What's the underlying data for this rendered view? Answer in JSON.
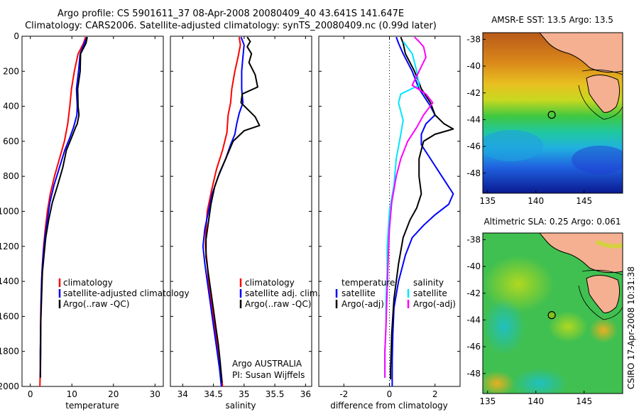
{
  "titles": {
    "line1": "Argo profile: CS 5901611_37 08-Apr-2008 20080409_40 43.641S 141.647E",
    "line2": "Climatology: CARS2006. Satellite-adjusted climatology: synTS_20080409.nc (0.99d later)"
  },
  "colors": {
    "climatology": "#ff0000",
    "satellite": "#0000ff",
    "argo": "#000000",
    "sat_salinity": "#00e5ff",
    "argo_salinity_adj": "#ff00ff"
  },
  "chart_data": [
    {
      "type": "line",
      "panel": "temperature",
      "xlabel": "temperature",
      "xlim": [
        -2,
        32
      ],
      "xticks": [
        0,
        10,
        20,
        30
      ],
      "ylim": [
        2000,
        0
      ],
      "yticks": [
        0,
        200,
        400,
        600,
        800,
        1000,
        1200,
        1400,
        1600,
        1800,
        2000
      ],
      "legend": [
        "climatology",
        "satellite-adjusted climatology",
        "Argo(..raw -QC)"
      ],
      "series": [
        {
          "name": "climatology",
          "color": "#ff0000",
          "points": [
            [
              13.3,
              5
            ],
            [
              12.8,
              40
            ],
            [
              11.5,
              100
            ],
            [
              10.6,
              200
            ],
            [
              9.9,
              300
            ],
            [
              9.5,
              400
            ],
            [
              9.0,
              500
            ],
            [
              8.2,
              600
            ],
            [
              7.0,
              700
            ],
            [
              5.8,
              800
            ],
            [
              4.8,
              900
            ],
            [
              4.1,
              1000
            ],
            [
              3.6,
              1100
            ],
            [
              3.2,
              1200
            ],
            [
              2.9,
              1300
            ],
            [
              2.7,
              1400
            ],
            [
              2.6,
              1500
            ],
            [
              2.5,
              1600
            ],
            [
              2.5,
              1700
            ],
            [
              2.4,
              1800
            ],
            [
              2.4,
              1900
            ],
            [
              2.3,
              2000
            ]
          ]
        },
        {
          "name": "satellite-adjusted climatology",
          "color": "#0000ff",
          "points": [
            [
              13.6,
              5
            ],
            [
              13.0,
              40
            ],
            [
              12.0,
              100
            ],
            [
              11.6,
              200
            ],
            [
              11.1,
              300
            ],
            [
              11.3,
              400
            ],
            [
              11.2,
              450
            ],
            [
              10.4,
              520
            ],
            [
              9.5,
              580
            ],
            [
              8.3,
              650
            ],
            [
              7.0,
              750
            ],
            [
              5.7,
              850
            ],
            [
              4.7,
              950
            ],
            [
              4.1,
              1050
            ],
            [
              3.5,
              1150
            ],
            [
              3.1,
              1250
            ],
            [
              2.8,
              1350
            ],
            [
              2.6,
              1500
            ],
            [
              2.5,
              1650
            ],
            [
              2.4,
              1800
            ],
            [
              2.4,
              1950
            ]
          ]
        },
        {
          "name": "Argo(..raw -QC)",
          "color": "#000000",
          "points": [
            [
              13.7,
              5
            ],
            [
              13.4,
              40
            ],
            [
              12.1,
              100
            ],
            [
              12.0,
              200
            ],
            [
              11.4,
              300
            ],
            [
              11.5,
              400
            ],
            [
              11.7,
              450
            ],
            [
              11.3,
              500
            ],
            [
              10.9,
              520
            ],
            [
              9.9,
              580
            ],
            [
              8.7,
              650
            ],
            [
              7.8,
              750
            ],
            [
              6.6,
              850
            ],
            [
              5.3,
              950
            ],
            [
              4.4,
              1050
            ],
            [
              3.7,
              1150
            ],
            [
              3.3,
              1250
            ],
            [
              2.9,
              1350
            ],
            [
              2.7,
              1500
            ],
            [
              2.5,
              1650
            ],
            [
              2.5,
              1800
            ],
            [
              2.4,
              1950
            ]
          ]
        }
      ]
    },
    {
      "type": "line",
      "panel": "salinity",
      "xlabel": "salinity",
      "xlim": [
        33.8,
        36.1
      ],
      "xticks": [
        34,
        34.5,
        35,
        35.5,
        36
      ],
      "ylim": [
        2000,
        0
      ],
      "legend": [
        "climatology",
        "satellite adj. clim.",
        "Argo(..raw -QC)"
      ],
      "annotations": [
        "Argo AUSTRALIA",
        "PI: Susan Wijffels"
      ],
      "series": [
        {
          "name": "climatology",
          "color": "#ff0000",
          "points": [
            [
              34.92,
              5
            ],
            [
              34.94,
              50
            ],
            [
              34.9,
              120
            ],
            [
              34.85,
              200
            ],
            [
              34.8,
              300
            ],
            [
              34.78,
              380
            ],
            [
              34.74,
              450
            ],
            [
              34.72,
              550
            ],
            [
              34.65,
              650
            ],
            [
              34.55,
              760
            ],
            [
              34.47,
              880
            ],
            [
              34.4,
              1000
            ],
            [
              34.38,
              1100
            ],
            [
              34.37,
              1200
            ],
            [
              34.4,
              1300
            ],
            [
              34.42,
              1400
            ],
            [
              34.46,
              1500
            ],
            [
              34.5,
              1600
            ],
            [
              34.54,
              1700
            ],
            [
              34.58,
              1800
            ],
            [
              34.62,
              1900
            ],
            [
              34.65,
              2000
            ]
          ]
        },
        {
          "name": "satellite adj. clim.",
          "color": "#0000ff",
          "points": [
            [
              34.95,
              5
            ],
            [
              35.0,
              50
            ],
            [
              34.98,
              120
            ],
            [
              34.96,
              200
            ],
            [
              34.96,
              300
            ],
            [
              34.98,
              380
            ],
            [
              34.92,
              440
            ],
            [
              34.88,
              500
            ],
            [
              34.85,
              560
            ],
            [
              34.78,
              620
            ],
            [
              34.7,
              700
            ],
            [
              34.58,
              800
            ],
            [
              34.48,
              900
            ],
            [
              34.42,
              1000
            ],
            [
              34.36,
              1100
            ],
            [
              34.33,
              1200
            ],
            [
              34.36,
              1300
            ],
            [
              34.4,
              1400
            ],
            [
              34.44,
              1500
            ],
            [
              34.48,
              1600
            ],
            [
              34.52,
              1700
            ],
            [
              34.56,
              1800
            ],
            [
              34.6,
              1900
            ],
            [
              34.63,
              2000
            ]
          ]
        },
        {
          "name": "Argo(..raw -QC)",
          "color": "#000000",
          "points": [
            [
              35.05,
              5
            ],
            [
              35.1,
              30
            ],
            [
              35.05,
              60
            ],
            [
              35.12,
              100
            ],
            [
              35.08,
              150
            ],
            [
              35.18,
              220
            ],
            [
              35.22,
              290
            ],
            [
              34.97,
              330
            ],
            [
              34.95,
              380
            ],
            [
              35.18,
              460
            ],
            [
              35.25,
              510
            ],
            [
              35.0,
              540
            ],
            [
              34.82,
              600
            ],
            [
              34.7,
              700
            ],
            [
              34.6,
              780
            ],
            [
              34.52,
              860
            ],
            [
              34.46,
              960
            ],
            [
              34.42,
              1060
            ],
            [
              34.38,
              1160
            ],
            [
              34.38,
              1260
            ],
            [
              34.42,
              1360
            ],
            [
              34.46,
              1460
            ],
            [
              34.5,
              1560
            ],
            [
              34.54,
              1660
            ],
            [
              34.58,
              1760
            ],
            [
              34.61,
              1860
            ],
            [
              34.64,
              1980
            ]
          ]
        }
      ]
    },
    {
      "type": "line",
      "panel": "difference",
      "xlabel": "difference from climatology",
      "xlim": [
        -3.1,
        3.1
      ],
      "xticks": [
        -2,
        0,
        2
      ],
      "ylim": [
        2000,
        0
      ],
      "legend_groups": [
        {
          "heading": "temperature",
          "items": [
            "satellite",
            "Argo(-adj)"
          ]
        },
        {
          "heading": "salinity",
          "items": [
            "satellite",
            "Argo(-adj)"
          ]
        }
      ],
      "series": [
        {
          "name": "temperature satellite",
          "color": "#0000ff",
          "points": [
            [
              0.3,
              5
            ],
            [
              0.4,
              40
            ],
            [
              0.6,
              100
            ],
            [
              1.0,
              200
            ],
            [
              1.3,
              300
            ],
            [
              1.8,
              400
            ],
            [
              2.0,
              450
            ],
            [
              1.6,
              500
            ],
            [
              1.4,
              560
            ],
            [
              1.4,
              620
            ],
            [
              1.8,
              700
            ],
            [
              2.3,
              800
            ],
            [
              2.8,
              900
            ],
            [
              2.6,
              960
            ],
            [
              2.0,
              1020
            ],
            [
              1.5,
              1080
            ],
            [
              1.0,
              1150
            ],
            [
              0.7,
              1250
            ],
            [
              0.4,
              1400
            ],
            [
              0.2,
              1550
            ],
            [
              0.15,
              1700
            ],
            [
              0.12,
              1850
            ],
            [
              0.12,
              2000
            ]
          ]
        },
        {
          "name": "temperature Argo(-adj)",
          "color": "#000000",
          "points": [
            [
              0.5,
              5
            ],
            [
              0.6,
              40
            ],
            [
              0.7,
              100
            ],
            [
              1.1,
              200
            ],
            [
              1.4,
              300
            ],
            [
              1.8,
              380
            ],
            [
              2.0,
              450
            ],
            [
              2.4,
              500
            ],
            [
              2.8,
              530
            ],
            [
              2.0,
              560
            ],
            [
              1.5,
              600
            ],
            [
              1.3,
              700
            ],
            [
              1.3,
              800
            ],
            [
              1.4,
              900
            ],
            [
              1.2,
              980
            ],
            [
              0.9,
              1050
            ],
            [
              0.6,
              1150
            ],
            [
              0.4,
              1300
            ],
            [
              0.2,
              1500
            ],
            [
              0.1,
              1700
            ],
            [
              0.05,
              1900
            ],
            [
              0.05,
              1960
            ]
          ]
        },
        {
          "name": "salinity satellite",
          "color": "#00e5ff",
          "points": [
            [
              0.6,
              30
            ],
            [
              1.0,
              100
            ],
            [
              1.2,
              200
            ],
            [
              1.3,
              280
            ],
            [
              0.5,
              330
            ],
            [
              0.4,
              380
            ],
            [
              0.6,
              480
            ],
            [
              0.5,
              560
            ],
            [
              0.3,
              700
            ],
            [
              0.2,
              850
            ],
            [
              0.0,
              1000
            ],
            [
              -0.05,
              1100
            ],
            [
              -0.1,
              1200
            ],
            [
              -0.1,
              1350
            ],
            [
              -0.15,
              1500
            ],
            [
              -0.15,
              1650
            ],
            [
              -0.2,
              1800
            ],
            [
              -0.2,
              1950
            ]
          ]
        },
        {
          "name": "salinity Argo(-adj)",
          "color": "#ff00ff",
          "points": [
            [
              1.1,
              5
            ],
            [
              1.3,
              30
            ],
            [
              1.5,
              60
            ],
            [
              1.6,
              120
            ],
            [
              1.3,
              200
            ],
            [
              1.0,
              280
            ],
            [
              1.6,
              330
            ],
            [
              1.9,
              380
            ],
            [
              1.5,
              450
            ],
            [
              1.2,
              520
            ],
            [
              0.8,
              600
            ],
            [
              0.5,
              700
            ],
            [
              0.3,
              800
            ],
            [
              0.1,
              950
            ],
            [
              0.0,
              1100
            ],
            [
              -0.05,
              1250
            ],
            [
              -0.1,
              1450
            ],
            [
              -0.15,
              1650
            ],
            [
              -0.2,
              1800
            ],
            [
              -0.2,
              1950
            ]
          ]
        }
      ]
    },
    {
      "type": "heatmap",
      "panel": "sst_map",
      "title": "AMSR-E SST: 13.5 Argo: 13.5",
      "xlim": [
        134.5,
        149
      ],
      "xticks": [
        135,
        140,
        145
      ],
      "ylim": [
        -49.5,
        -37.5
      ],
      "yticks": [
        -38,
        -40,
        -42,
        -44,
        -46,
        -48
      ],
      "marker": {
        "lon": 141.647,
        "lat": -43.641
      }
    },
    {
      "type": "heatmap",
      "panel": "sla_map",
      "title": "Altimetric SLA: 0.25 Argo: 0.061",
      "xlim": [
        134.5,
        149
      ],
      "xticks": [
        135,
        140,
        145
      ],
      "ylim": [
        -49.5,
        -37.5
      ],
      "yticks": [
        -38,
        -40,
        -42,
        -44,
        -46,
        -48
      ],
      "marker": {
        "lon": 141.647,
        "lat": -43.641
      }
    }
  ],
  "stamp": "CSIRO 17-Apr-2008 10:31:38"
}
